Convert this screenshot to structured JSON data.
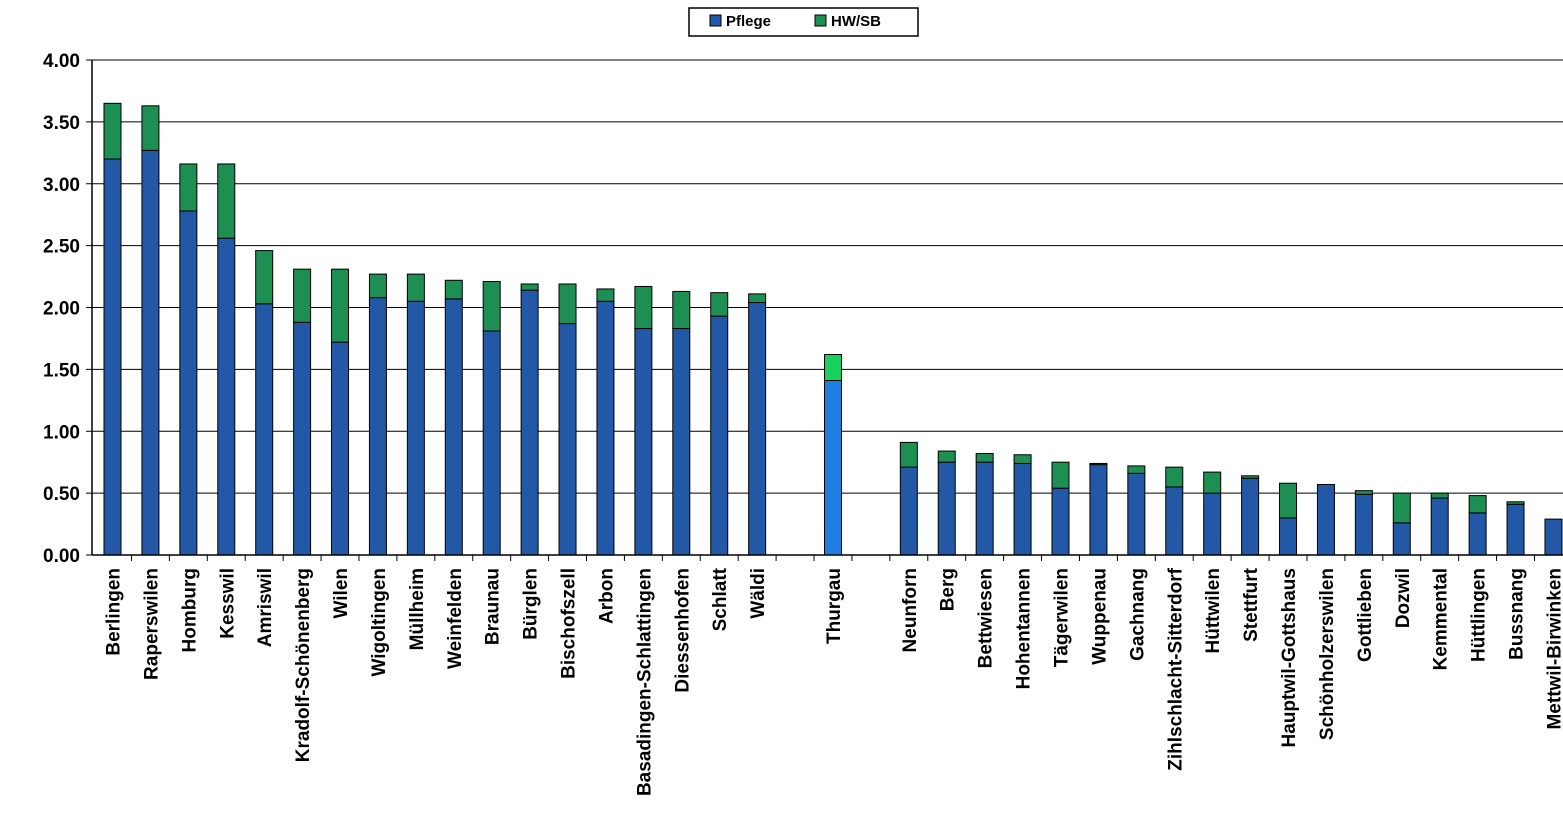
{
  "chart_data": {
    "type": "bar",
    "stacked": true,
    "title": "",
    "xlabel": "",
    "ylabel": "",
    "ylim": [
      0,
      4
    ],
    "yticks": [
      "0.00",
      "0.50",
      "1.00",
      "1.50",
      "2.00",
      "2.50",
      "3.00",
      "3.50",
      "4.00"
    ],
    "grid": true,
    "legend_position": "top-center",
    "categories": [
      "Berlingen",
      "Raperswilen",
      "Homburg",
      "Kesswil",
      "Amriswil",
      "Kradolf-Schönenberg",
      "Wilen",
      "Wigoltingen",
      "Müllheim",
      "Weinfelden",
      "Braunau",
      "Bürglen",
      "Bischofszell",
      "Arbon",
      "Basadingen-Schlattingen",
      "Diessenhofen",
      "Schlatt",
      "Wäldi",
      "",
      "Thurgau",
      "",
      "Neunforn",
      "Berg",
      "Bettwiesen",
      "Hohentannen",
      "Tägerwilen",
      "Wuppenau",
      "Gachnang",
      "Zihlschlacht-Sitterdorf",
      "Hüttwilen",
      "Stettfurt",
      "Hauptwil-Gottshaus",
      "Schönholzerswilen",
      "Gottlieben",
      "Dozwil",
      "Kemmental",
      "Hüttlingen",
      "Bussnang",
      "Mettwil-Birwinken"
    ],
    "highlight_category": "Thurgau",
    "series": [
      {
        "name": "Pflege",
        "color": "#2258A5",
        "highlight_color": "#1F7FE0",
        "values": [
          3.2,
          3.27,
          2.78,
          2.56,
          2.03,
          1.88,
          1.72,
          2.08,
          2.05,
          2.07,
          1.81,
          2.14,
          1.87,
          2.05,
          1.83,
          1.83,
          1.93,
          2.04,
          null,
          1.41,
          null,
          0.71,
          0.75,
          0.75,
          0.74,
          0.54,
          0.73,
          0.66,
          0.55,
          0.5,
          0.62,
          0.3,
          0.57,
          0.49,
          0.26,
          0.46,
          0.34,
          0.41,
          0.29
        ]
      },
      {
        "name": "HW/SB",
        "color": "#1E8F53",
        "highlight_color": "#19D05C",
        "values": [
          0.45,
          0.36,
          0.38,
          0.6,
          0.43,
          0.43,
          0.59,
          0.19,
          0.22,
          0.15,
          0.4,
          0.05,
          0.32,
          0.1,
          0.34,
          0.3,
          0.19,
          0.07,
          null,
          0.21,
          null,
          0.2,
          0.09,
          0.07,
          0.07,
          0.21,
          0.01,
          0.06,
          0.16,
          0.17,
          0.02,
          0.28,
          0.0,
          0.03,
          0.24,
          0.04,
          0.14,
          0.02,
          0.0
        ]
      }
    ]
  }
}
